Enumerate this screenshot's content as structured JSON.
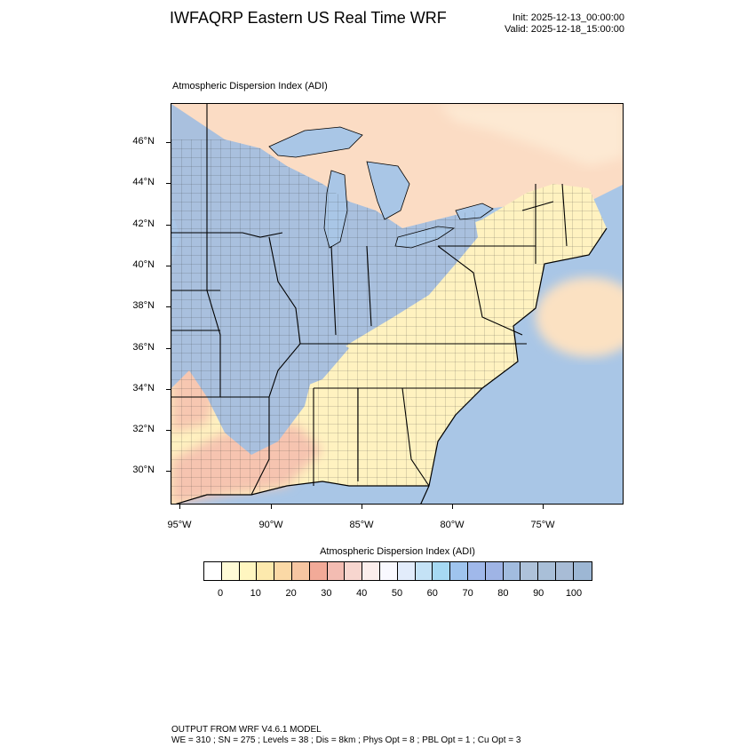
{
  "header": {
    "title": "IWFAQRP Eastern US Real Time WRF",
    "init": "Init: 2025-12-13_00:00:00",
    "valid": "Valid: 2025-12-18_15:00:00"
  },
  "map": {
    "subtitle": "Atmospheric Dispersion Index   (ADI)",
    "lat_labels": [
      "46°N",
      "44°N",
      "42°N",
      "40°N",
      "38°N",
      "36°N",
      "34°N",
      "32°N",
      "30°N"
    ],
    "lon_labels": [
      "95°W",
      "90°W",
      "85°W",
      "80°W",
      "75°W"
    ],
    "colors": {
      "ocean": "#a9c6e6",
      "land_high": "#a9c0de",
      "land_low": "#fff8c2",
      "land_mid": "#f6c9ad",
      "borders": "#000000"
    }
  },
  "colorbar": {
    "title": "Atmospheric Dispersion Index  (ADI)",
    "tick_labels": [
      "0",
      "10",
      "20",
      "30",
      "40",
      "50",
      "60",
      "70",
      "80",
      "90",
      "100"
    ],
    "colors": [
      "#ffffff",
      "#fffbd6",
      "#fff6c0",
      "#fde9ad",
      "#fbd9a6",
      "#f6c6a2",
      "#f2aa98",
      "#f3bcb2",
      "#f7d6cf",
      "#fbeeec",
      "#f9f9ff",
      "#e2ecfb",
      "#c4e2f6",
      "#a6d9f3",
      "#9fc4ee",
      "#a0b8ea",
      "#9fb4e5",
      "#a2bcdf",
      "#aec2da",
      "#a9bfd8",
      "#a8bcd6",
      "#9db7d4"
    ]
  },
  "footer": {
    "line1": "OUTPUT FROM WRF V4.6.1 MODEL",
    "line2": "WE = 310 ; SN = 275 ; Levels = 38 ; Dis = 8km ; Phys Opt = 8 ; PBL Opt = 1 ; Cu Opt = 3"
  }
}
